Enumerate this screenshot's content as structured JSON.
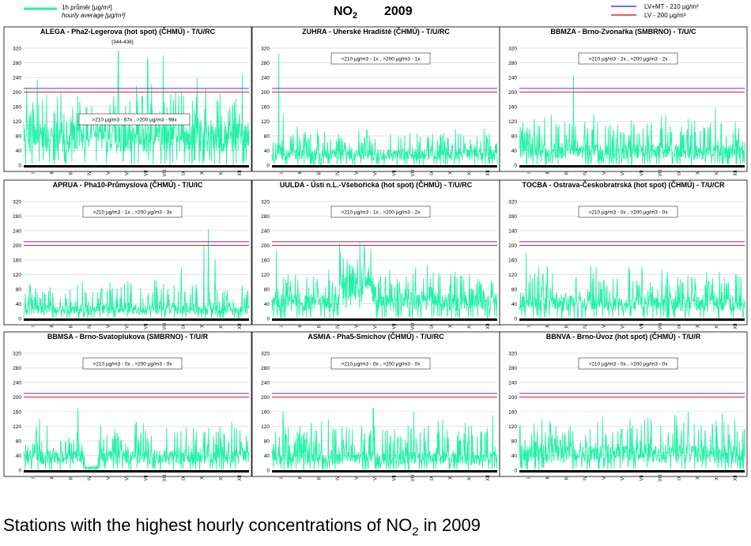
{
  "page": {
    "caption_pre": "Stations with the highest hourly concentrations of NO",
    "caption_sub": "2",
    "caption_post": " in 2009"
  },
  "chart_data": {
    "type": "line",
    "title_main": "NO",
    "title_sub": "2",
    "title_year": "2009",
    "legend_left": {
      "label1": "1h průměr [µg/m³]",
      "label2": "hourly average [µg/m³]",
      "color": "#22f2a6"
    },
    "legend_right": [
      {
        "label": "LV+MT - 210 µg/m³",
        "value": 210,
        "color": "#6a2bd9"
      },
      {
        "label": "LV   - 200 µg/m³",
        "value": 200,
        "color": "#e8202a"
      }
    ],
    "series_color": "#22f2a6",
    "ylim": [
      0,
      320
    ],
    "yticks": [
      0,
      40,
      80,
      120,
      160,
      200,
      240,
      280,
      320
    ],
    "months": [
      "I",
      "II",
      "III",
      "IV",
      "V",
      "VI",
      "VII",
      "VIII",
      "IX",
      "X",
      "XI",
      "XII"
    ],
    "panels": [
      {
        "title": "ALEGA - Pha2-Legerova (hot spot) (ČHMÚ) - T/U/RC",
        "annotation": ">210 µg/m3 - 67x  ,  >200 µg/m3 - 98x",
        "note": "[344-436]",
        "profile": {
          "base": 95,
          "amp": 70,
          "peak": 310,
          "peaks": [
            [
              0.06,
              235
            ],
            [
              0.42,
              312
            ],
            [
              0.55,
              290
            ],
            [
              0.62,
              300
            ],
            [
              0.77,
              240
            ],
            [
              0.97,
              250
            ]
          ]
        }
      },
      {
        "title": "ZUHRA - Uherské Hradiště (ČHMÚ) - T/U/RC",
        "annotation": ">210 µg/m3 - 1x  ,  >200 µg/m3 - 1x",
        "profile": {
          "base": 35,
          "amp": 40,
          "peaks": [
            [
              0.03,
              305
            ],
            [
              0.05,
              140
            ],
            [
              0.42,
              95
            ],
            [
              0.75,
              85
            ]
          ]
        }
      },
      {
        "title": "BBMZA - Brno-Zvonařka (SMBRNO) - T/U/C",
        "annotation": ">210 µg/m3 - 2x  ,  >200 µg/m3 - 2x",
        "profile": {
          "base": 45,
          "amp": 55,
          "peaks": [
            [
              0.24,
              245
            ],
            [
              0.33,
              140
            ],
            [
              0.87,
              155
            ]
          ]
        }
      },
      {
        "title": "APRUA - Pha10-Průmyslová (ČHMÚ) - T/U/IC",
        "annotation": ">210 µg/m3 - 1x  ,  >200 µg/m3 - 3x",
        "profile": {
          "base": 30,
          "amp": 45,
          "peaks": [
            [
              0.82,
              245
            ],
            [
              0.8,
              200
            ],
            [
              0.85,
              160
            ],
            [
              0.7,
              140
            ]
          ]
        }
      },
      {
        "title": "UULDA - Ústí n.L.-Všebořická (hot spot)  (ČHMÚ) - T/U/RC",
        "annotation": ">210 µg/m3 - 1x  ,  >200 µg/m3 - 2x",
        "profile": {
          "base": 55,
          "amp": 50,
          "hump": [
            0.3,
            0.45,
            40
          ],
          "peaks": [
            [
              0.3,
              205
            ],
            [
              0.39,
              210
            ],
            [
              0.41,
              200
            ],
            [
              0.02,
              185
            ]
          ]
        }
      },
      {
        "title": "TOCBA - Ostrava-Českobratrská (hot spot) (ČHMÚ) - T/U/CR",
        "annotation": ">210 µg/m3 - 0x  ,  >200 µg/m3 - 0x",
        "profile": {
          "base": 50,
          "amp": 55,
          "peaks": [
            [
              0.03,
              180
            ],
            [
              0.34,
              140
            ],
            [
              0.96,
              120
            ]
          ]
        }
      },
      {
        "title": "BBMSA - Brno-Svatoplukova (SMBRNO) - T/U/R",
        "annotation": ">210 µg/m3 - 0x  ,  >200 µg/m3 - 0x",
        "profile": {
          "base": 45,
          "amp": 55,
          "gap": [
            0.27,
            0.33
          ],
          "peaks": [
            [
              0.24,
              170
            ],
            [
              0.07,
              140
            ],
            [
              0.5,
              130
            ]
          ]
        }
      },
      {
        "title": "ASMIA - Pha5-Smíchov (ČHMÚ) - T/U/RC",
        "annotation": ">210 µg/m3 - 0x  ,  >200 µg/m3 - 0x",
        "profile": {
          "base": 40,
          "amp": 60,
          "peaks": [
            [
              0.05,
              160
            ],
            [
              0.45,
              170
            ],
            [
              0.63,
              160
            ],
            [
              0.98,
              150
            ]
          ]
        }
      },
      {
        "title": "BBNVA - Brno-Úvoz (hot spot) (ČHMÚ) - T/U/R",
        "annotation": ">210 µg/m3 - 0x  ,  >200 µg/m3 - 0x",
        "profile": {
          "base": 55,
          "amp": 55,
          "peaks": [
            [
              0.75,
              160
            ],
            [
              0.9,
              155
            ],
            [
              0.1,
              140
            ]
          ]
        }
      }
    ]
  }
}
